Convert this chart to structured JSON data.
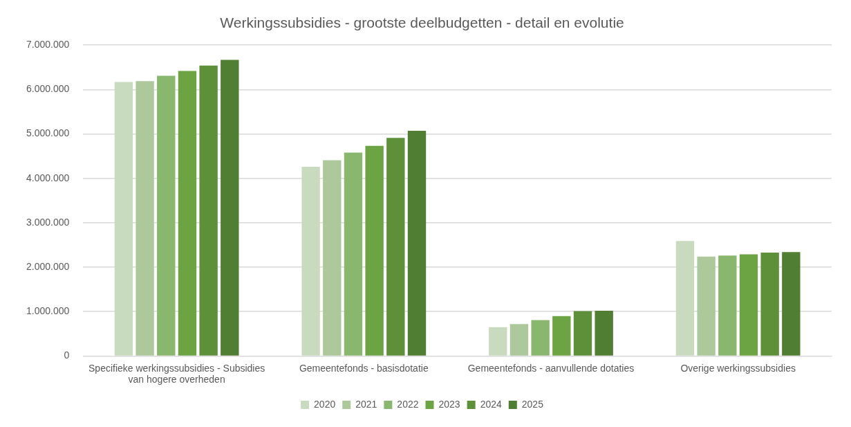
{
  "chart_data": {
    "type": "bar",
    "title": "Werkingssubsidies - grootste deelbudgetten - detail en evolutie",
    "categories": [
      "Specifieke werkingssubsidies - Subsidies van hogere overheden",
      "Gemeentefonds - basisdotatie",
      "Gemeentefonds - aanvullende dotaties",
      "Overige werkingssubsidies"
    ],
    "series": [
      {
        "name": "2020",
        "color": "#c9dbbf",
        "values": [
          6170000,
          4260000,
          650000,
          2590000
        ]
      },
      {
        "name": "2021",
        "color": "#adc99b",
        "values": [
          6190000,
          4410000,
          720000,
          2240000
        ]
      },
      {
        "name": "2022",
        "color": "#8ab76e",
        "values": [
          6310000,
          4580000,
          810000,
          2260000
        ]
      },
      {
        "name": "2023",
        "color": "#6da443",
        "values": [
          6420000,
          4730000,
          900000,
          2290000
        ]
      },
      {
        "name": "2024",
        "color": "#5e903a",
        "values": [
          6540000,
          4910000,
          1010000,
          2330000
        ]
      },
      {
        "name": "2025",
        "color": "#507e32",
        "values": [
          6670000,
          5070000,
          1020000,
          2340000
        ]
      }
    ],
    "ylim": [
      0,
      7000000
    ],
    "yticks": [
      {
        "value": 0,
        "label": "0"
      },
      {
        "value": 1000000,
        "label": "1.000.000"
      },
      {
        "value": 2000000,
        "label": "2.000.000"
      },
      {
        "value": 3000000,
        "label": "3.000.000"
      },
      {
        "value": 4000000,
        "label": "4.000.000"
      },
      {
        "value": 5000000,
        "label": "5.000.000"
      },
      {
        "value": 6000000,
        "label": "6.000.000"
      },
      {
        "value": 7000000,
        "label": "7.000.000"
      }
    ],
    "grid": "y",
    "legend": "bottom"
  }
}
